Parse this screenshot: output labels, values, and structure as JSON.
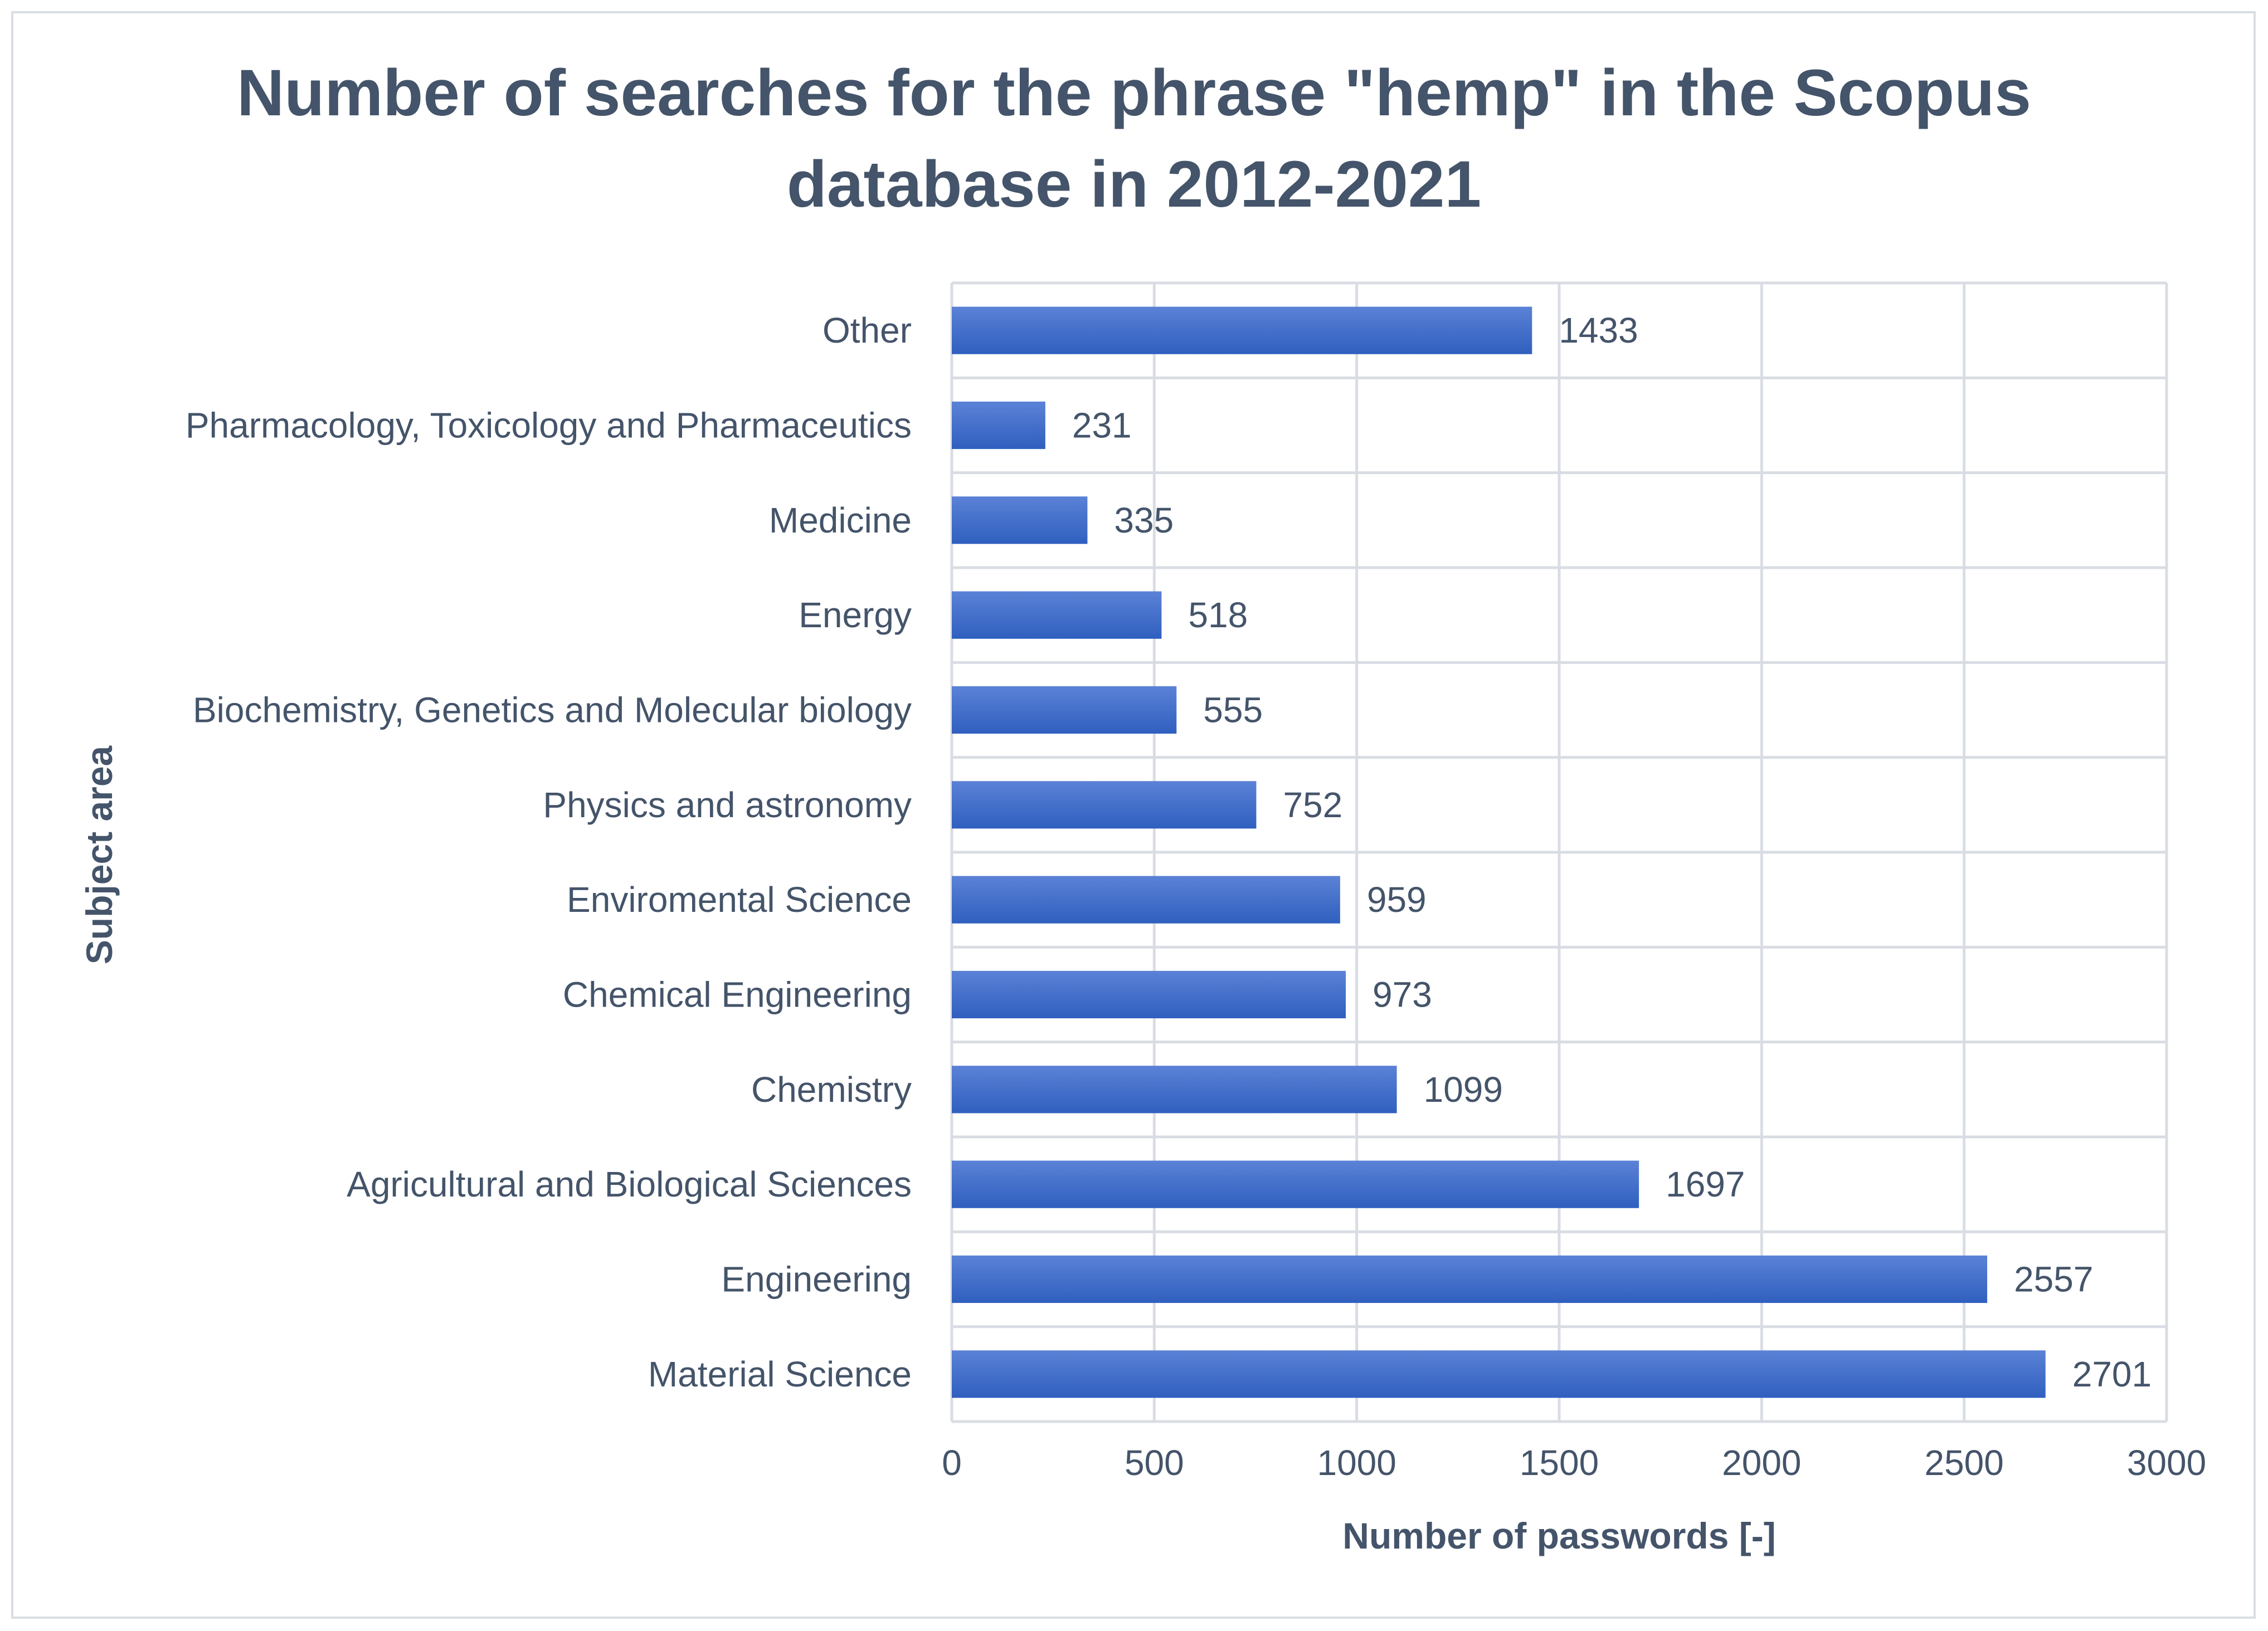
{
  "chart_data": {
    "type": "bar",
    "orientation": "horizontal",
    "title": "Number of searches for the phrase \"hemp\" in the Scopus database in 2012-2021",
    "title_lines": [
      "Number of searches for the phrase \"hemp\" in the Scopus",
      "database in 2012-2021"
    ],
    "xlabel": "Number of passwords [-]",
    "ylabel": "Subject area",
    "xlim": [
      0,
      3000
    ],
    "xticks": [
      "0",
      "500",
      "1000",
      "1500",
      "2000",
      "2500",
      "3000"
    ],
    "categories": [
      "Material Science",
      "Engineering",
      "Agricultural and Biological Sciences",
      "Chemistry",
      "Chemical Engineering",
      "Enviromental Science",
      "Physics and astronomy",
      "Biochemistry, Genetics and Molecular biology",
      "Energy",
      "Medicine",
      "Pharmacology, Toxicology and Pharmaceutics",
      "Other"
    ],
    "values": [
      2701,
      2557,
      1697,
      1099,
      973,
      959,
      752,
      555,
      518,
      335,
      231,
      1433
    ],
    "data_labels": [
      "2701",
      "2557",
      "1697",
      "1099",
      "973",
      "959",
      "752",
      "555",
      "518",
      "335",
      "231",
      "1433"
    ],
    "grid": true,
    "legend": "none",
    "colors": {
      "bar_top": "#5b82d6",
      "bar_bottom": "#2f5fbf",
      "text": "#44546a",
      "grid": "#d9dde3"
    }
  }
}
